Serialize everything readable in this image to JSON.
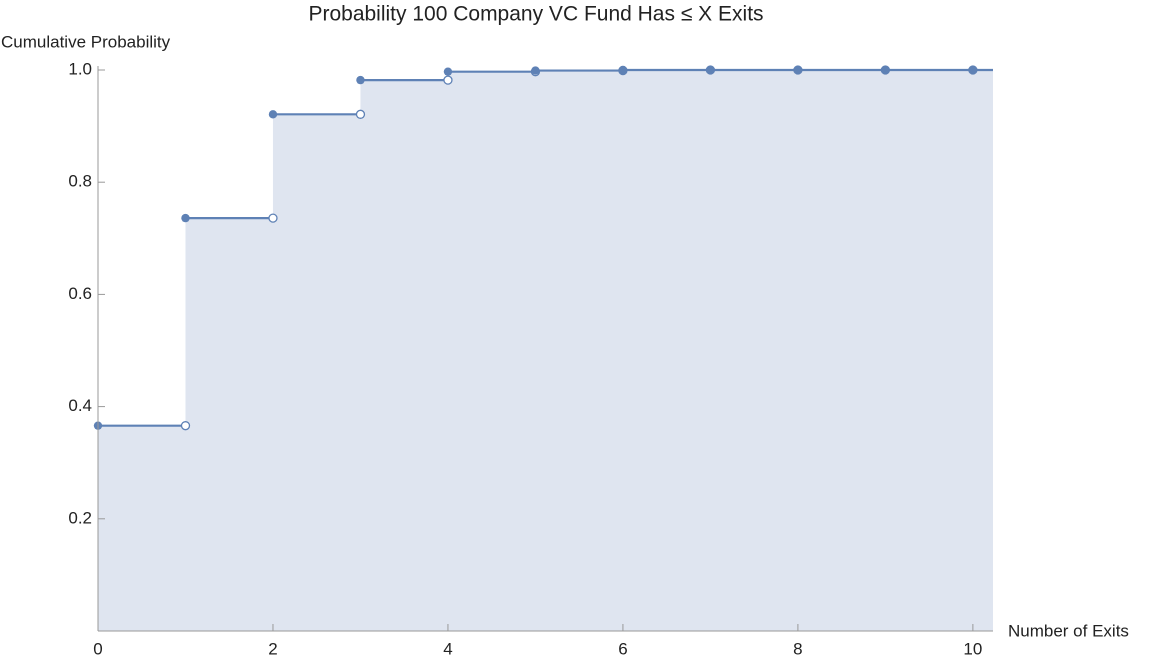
{
  "chart_data": {
    "type": "step",
    "title": "Probability 100 Company VC Fund Has ≤ X Exits",
    "x_label": "Number of Exits",
    "y_label": "Cumulative Probability",
    "x": [
      0,
      1,
      2,
      3,
      4,
      5,
      6,
      7,
      8,
      9,
      10
    ],
    "values": [
      0.366,
      0.736,
      0.921,
      0.982,
      0.997,
      0.999,
      1,
      1,
      1,
      1,
      1
    ],
    "color": "#5e81b5",
    "fill_color": "#dfe5f0",
    "xlim": [
      0,
      10.23
    ],
    "ylim": [
      0,
      1
    ],
    "xticks": [
      0,
      2,
      4,
      6,
      8,
      10
    ],
    "yticks": [
      0.2,
      0.4,
      0.6,
      0.8,
      {
        "value": 1,
        "label": "1.0"
      }
    ]
  }
}
